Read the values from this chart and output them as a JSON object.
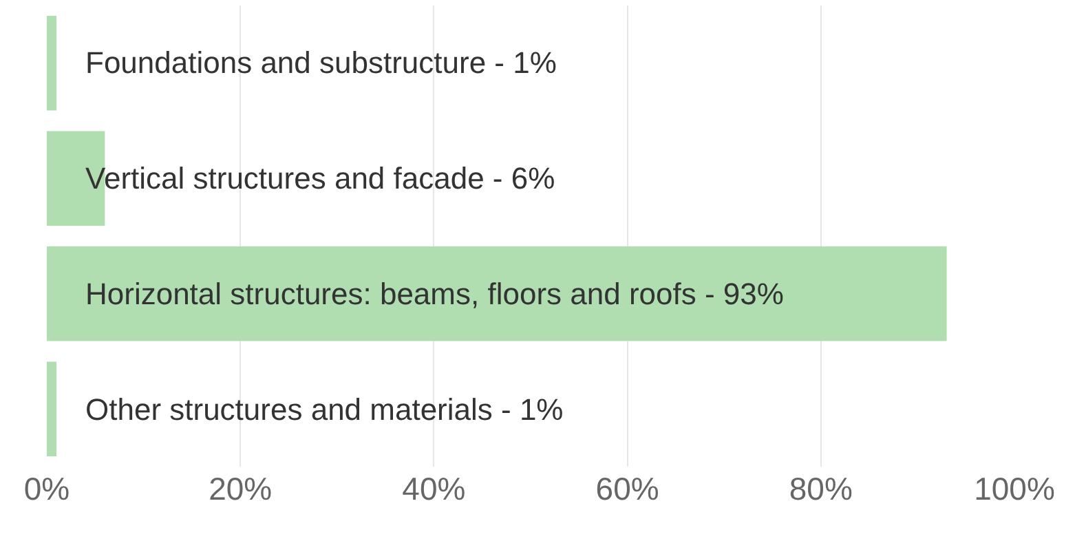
{
  "chart_data": {
    "type": "bar",
    "orientation": "horizontal",
    "categories": [
      "Foundations and substructure - 1%",
      "Vertical structures and facade - 6%",
      "Horizontal structures: beams, floors and roofs - 93%",
      "Other structures and materials - 1%"
    ],
    "values": [
      1,
      6,
      93,
      1
    ],
    "color": "#b0deb0",
    "xlim": [
      0,
      100
    ],
    "xticks": [
      {
        "value": 0,
        "label": "0%"
      },
      {
        "value": 20,
        "label": "20%"
      },
      {
        "value": 40,
        "label": "40%"
      },
      {
        "value": 60,
        "label": "60%"
      },
      {
        "value": 80,
        "label": "80%"
      },
      {
        "value": 100,
        "label": "100%"
      }
    ],
    "grid": "x"
  }
}
